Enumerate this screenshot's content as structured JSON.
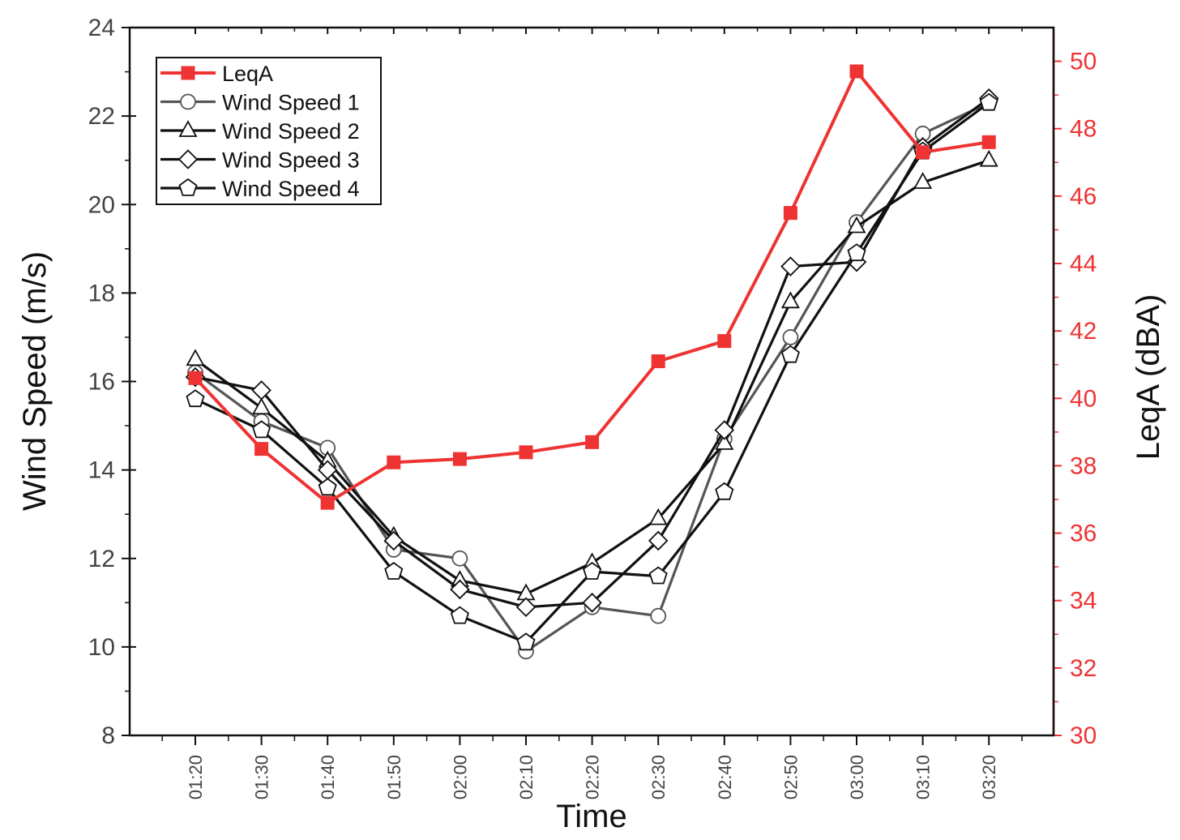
{
  "chart_data": {
    "type": "line",
    "xlabel": "Time",
    "ylabel": "Wind Speed (m/s)",
    "y2label": "LeqA (dBA)",
    "categories": [
      "01:20",
      "01:30",
      "01:40",
      "01:50",
      "02:00",
      "02:10",
      "02:20",
      "02:30",
      "02:40",
      "02:50",
      "03:00",
      "03:10",
      "03:20"
    ],
    "ylim": [
      8,
      24
    ],
    "yticks": [
      8,
      10,
      12,
      14,
      16,
      18,
      20,
      22,
      24
    ],
    "y2lim": [
      30,
      51
    ],
    "y2ticks": [
      30,
      32,
      34,
      36,
      38,
      40,
      42,
      44,
      46,
      48,
      50
    ],
    "legend_position": "top-left",
    "series": [
      {
        "name": "LeqA",
        "axis": "right",
        "color": "#ee3333",
        "marker": "square",
        "values": [
          40.6,
          38.5,
          36.9,
          38.1,
          38.2,
          38.4,
          38.7,
          41.1,
          41.7,
          45.5,
          49.7,
          47.3,
          47.6
        ]
      },
      {
        "name": "Wind Speed 1",
        "axis": "left",
        "color": "#555555",
        "marker": "circle",
        "values": [
          16.2,
          15.1,
          14.5,
          12.2,
          12.0,
          9.9,
          10.9,
          10.7,
          14.7,
          17.0,
          19.6,
          21.6,
          22.3
        ]
      },
      {
        "name": "Wind Speed 2",
        "axis": "left",
        "color": "#111111",
        "marker": "triangle",
        "values": [
          16.5,
          15.4,
          14.2,
          12.5,
          11.5,
          11.2,
          11.9,
          12.9,
          14.6,
          17.8,
          19.5,
          20.5,
          21.0
        ]
      },
      {
        "name": "Wind Speed 3",
        "axis": "left",
        "color": "#111111",
        "marker": "diamond",
        "values": [
          16.1,
          15.8,
          14.0,
          12.4,
          11.3,
          10.9,
          11.0,
          12.4,
          14.9,
          18.6,
          18.7,
          21.3,
          22.4
        ]
      },
      {
        "name": "Wind Speed 4",
        "axis": "left",
        "color": "#111111",
        "marker": "pentagon",
        "values": [
          15.6,
          14.9,
          13.6,
          11.7,
          10.7,
          10.1,
          11.7,
          11.6,
          13.5,
          16.6,
          18.9,
          21.2,
          22.3
        ]
      }
    ]
  }
}
